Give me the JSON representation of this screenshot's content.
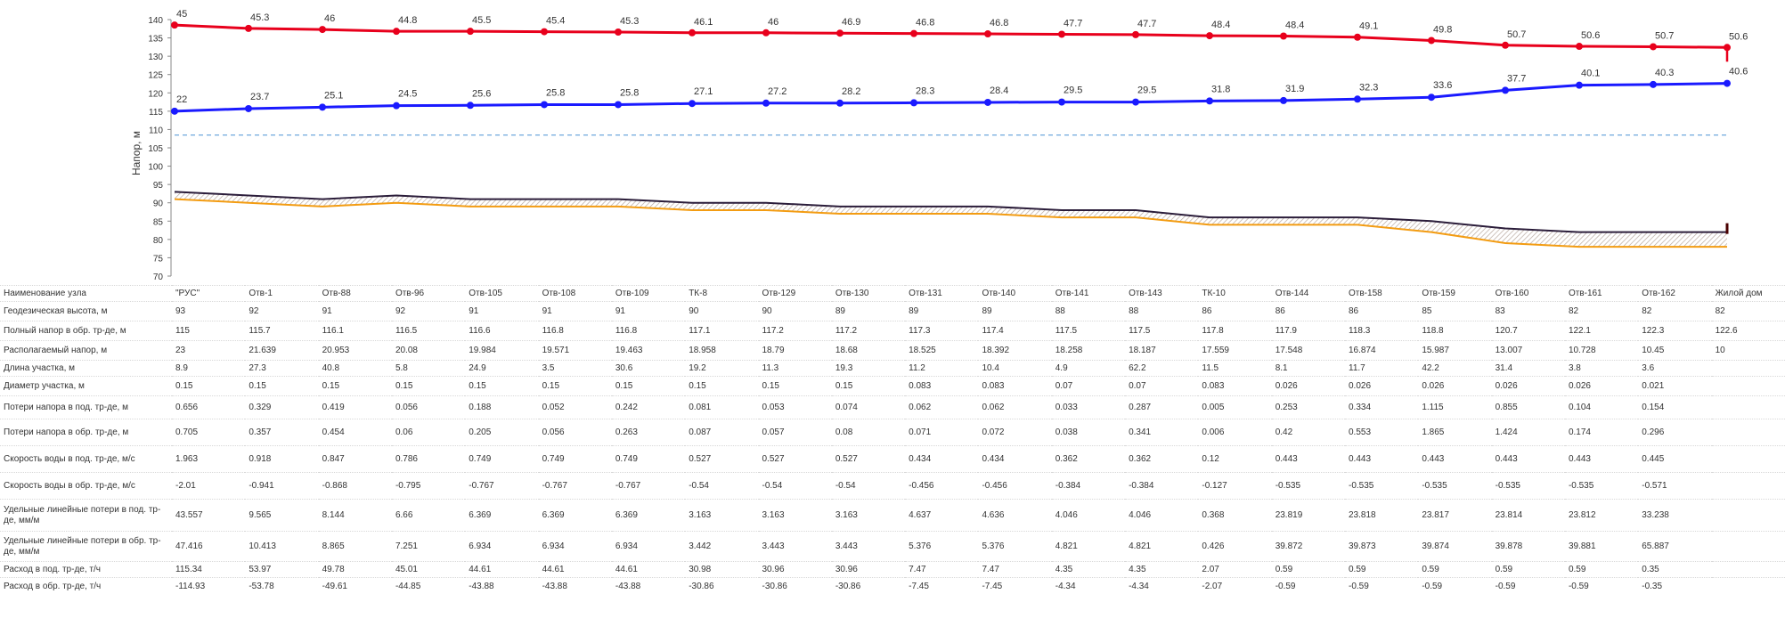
{
  "chart_data": {
    "type": "line",
    "ylabel": "Напор, м",
    "ylim": [
      70,
      140
    ],
    "yticks": [
      70,
      75,
      80,
      85,
      90,
      95,
      100,
      105,
      110,
      115,
      120,
      125,
      130,
      135,
      140
    ],
    "grid": false,
    "categories": [
      "\"РУС\"",
      "Отв-1",
      "Отв-88",
      "Отв-96",
      "Отв-105",
      "Отв-108",
      "Отв-109",
      "ТК-8",
      "Отв-129",
      "Отв-130",
      "Отв-131",
      "Отв-140",
      "Отв-141",
      "Отв-143",
      "ТК-10",
      "Отв-144",
      "Отв-158",
      "Отв-159",
      "Отв-160",
      "Отв-161",
      "Отв-162",
      "Жилой дом"
    ],
    "series": [
      {
        "color": "#e8001c",
        "values": [
          138.5,
          137.6,
          137.3,
          136.8,
          136.8,
          136.7,
          136.6,
          136.4,
          136.4,
          136.3,
          136.2,
          136.1,
          136.0,
          135.9,
          135.6,
          135.5,
          135.2,
          134.3,
          133.0,
          132.7,
          132.6,
          132.4
        ],
        "labels": [
          "45",
          "45.3",
          "46",
          "44.8",
          "45.5",
          "45.4",
          "45.3",
          "46.1",
          "46",
          "46.9",
          "46.8",
          "46.8",
          "47.7",
          "47.7",
          "48.4",
          "48.4",
          "49.1",
          "49.8",
          "50.7",
          "50.6",
          "50.7",
          "50.6"
        ]
      },
      {
        "color": "#1a1aff",
        "values": [
          115,
          115.7,
          116.1,
          116.5,
          116.6,
          116.8,
          116.8,
          117.1,
          117.2,
          117.2,
          117.3,
          117.4,
          117.5,
          117.5,
          117.8,
          117.9,
          118.3,
          118.8,
          120.7,
          122.1,
          122.3,
          122.6
        ],
        "labels": [
          "22",
          "23.7",
          "25.1",
          "24.5",
          "25.6",
          "25.8",
          "25.8",
          "27.1",
          "27.2",
          "28.2",
          "28.3",
          "28.4",
          "29.5",
          "29.5",
          "31.8",
          "31.9",
          "32.3",
          "33.6",
          "37.7",
          "40.1",
          "40.3",
          "40.6"
        ]
      },
      {
        "color": "#6fa8dc",
        "dashed": true,
        "values": [
          108.5,
          108.5,
          108.5,
          108.5,
          108.5,
          108.5,
          108.5,
          108.5,
          108.5,
          108.5,
          108.5,
          108.5,
          108.5,
          108.5,
          108.5,
          108.5,
          108.5,
          108.5,
          108.5,
          108.5,
          108.5,
          108.5
        ]
      },
      {
        "color": "#2b1d3a",
        "values": [
          93,
          92,
          91,
          92,
          91,
          91,
          91,
          90,
          90,
          89,
          89,
          89,
          88,
          88,
          86,
          86,
          86,
          85,
          83,
          82,
          82,
          82
        ]
      },
      {
        "color": "#f39c12",
        "values": [
          91,
          90,
          89,
          90,
          89,
          89,
          89,
          88,
          88,
          87,
          87,
          87,
          86,
          86,
          84,
          84,
          84,
          82,
          79,
          78,
          78,
          78
        ]
      }
    ]
  },
  "table": {
    "rows": [
      {
        "label": "Наименование узла",
        "values": [
          "\"РУС\"",
          "Отв-1",
          "Отв-88",
          "Отв-96",
          "Отв-105",
          "Отв-108",
          "Отв-109",
          "ТК-8",
          "Отв-129",
          "Отв-130",
          "Отв-131",
          "Отв-140",
          "Отв-141",
          "Отв-143",
          "ТК-10",
          "Отв-144",
          "Отв-158",
          "Отв-159",
          "Отв-160",
          "Отв-161",
          "Отв-162",
          "Жилой дом"
        ]
      },
      {
        "label": "Геодезическая высота, м",
        "values": [
          "93",
          "92",
          "91",
          "92",
          "91",
          "91",
          "91",
          "90",
          "90",
          "89",
          "89",
          "89",
          "88",
          "88",
          "86",
          "86",
          "86",
          "85",
          "83",
          "82",
          "82",
          "82"
        ]
      },
      {
        "label": "Полный напор в обр. тр-де, м",
        "values": [
          "115",
          "115.7",
          "116.1",
          "116.5",
          "116.6",
          "116.8",
          "116.8",
          "117.1",
          "117.2",
          "117.2",
          "117.3",
          "117.4",
          "117.5",
          "117.5",
          "117.8",
          "117.9",
          "118.3",
          "118.8",
          "120.7",
          "122.1",
          "122.3",
          "122.6"
        ]
      },
      {
        "label": "Располагаемый напор, м",
        "values": [
          "23",
          "21.639",
          "20.953",
          "20.08",
          "19.984",
          "19.571",
          "19.463",
          "18.958",
          "18.79",
          "18.68",
          "18.525",
          "18.392",
          "18.258",
          "18.187",
          "17.559",
          "17.548",
          "16.874",
          "15.987",
          "13.007",
          "10.728",
          "10.45",
          "10"
        ]
      },
      {
        "label": "Длина участка, м",
        "values": [
          "8.9",
          "27.3",
          "40.8",
          "5.8",
          "24.9",
          "3.5",
          "30.6",
          "19.2",
          "11.3",
          "19.3",
          "11.2",
          "10.4",
          "4.9",
          "62.2",
          "11.5",
          "8.1",
          "11.7",
          "42.2",
          "31.4",
          "3.8",
          "3.6",
          ""
        ]
      },
      {
        "label": "Диаметр участка, м",
        "values": [
          "0.15",
          "0.15",
          "0.15",
          "0.15",
          "0.15",
          "0.15",
          "0.15",
          "0.15",
          "0.15",
          "0.15",
          "0.083",
          "0.083",
          "0.07",
          "0.07",
          "0.083",
          "0.026",
          "0.026",
          "0.026",
          "0.026",
          "0.026",
          "0.021",
          ""
        ]
      },
      {
        "label": "Потери напора в под. тр-де, м",
        "values": [
          "0.656",
          "0.329",
          "0.419",
          "0.056",
          "0.188",
          "0.052",
          "0.242",
          "0.081",
          "0.053",
          "0.074",
          "0.062",
          "0.062",
          "0.033",
          "0.287",
          "0.005",
          "0.253",
          "0.334",
          "1.115",
          "0.855",
          "0.104",
          "0.154",
          ""
        ]
      },
      {
        "label": "Потери напора в обр. тр-де, м",
        "values": [
          "0.705",
          "0.357",
          "0.454",
          "0.06",
          "0.205",
          "0.056",
          "0.263",
          "0.087",
          "0.057",
          "0.08",
          "0.071",
          "0.072",
          "0.038",
          "0.341",
          "0.006",
          "0.42",
          "0.553",
          "1.865",
          "1.424",
          "0.174",
          "0.296",
          ""
        ]
      },
      {
        "label": "Скорость воды в под. тр-де, м/с",
        "values": [
          "1.963",
          "0.918",
          "0.847",
          "0.786",
          "0.749",
          "0.749",
          "0.749",
          "0.527",
          "0.527",
          "0.527",
          "0.434",
          "0.434",
          "0.362",
          "0.362",
          "0.12",
          "0.443",
          "0.443",
          "0.443",
          "0.443",
          "0.443",
          "0.445",
          ""
        ]
      },
      {
        "label": "Скорость воды в обр. тр-де, м/с",
        "values": [
          "-2.01",
          "-0.941",
          "-0.868",
          "-0.795",
          "-0.767",
          "-0.767",
          "-0.767",
          "-0.54",
          "-0.54",
          "-0.54",
          "-0.456",
          "-0.456",
          "-0.384",
          "-0.384",
          "-0.127",
          "-0.535",
          "-0.535",
          "-0.535",
          "-0.535",
          "-0.535",
          "-0.571",
          ""
        ]
      },
      {
        "label": "Удельные линейные потери в под. тр-де, мм/м",
        "values": [
          "43.557",
          "9.565",
          "8.144",
          "6.66",
          "6.369",
          "6.369",
          "6.369",
          "3.163",
          "3.163",
          "3.163",
          "4.637",
          "4.636",
          "4.046",
          "4.046",
          "0.368",
          "23.819",
          "23.818",
          "23.817",
          "23.814",
          "23.812",
          "33.238",
          ""
        ]
      },
      {
        "label": "Удельные линейные потери в обр. тр-де, мм/м",
        "values": [
          "47.416",
          "10.413",
          "8.865",
          "7.251",
          "6.934",
          "6.934",
          "6.934",
          "3.442",
          "3.443",
          "3.443",
          "5.376",
          "5.376",
          "4.821",
          "4.821",
          "0.426",
          "39.872",
          "39.873",
          "39.874",
          "39.878",
          "39.881",
          "65.887",
          ""
        ]
      },
      {
        "label": "Расход в под. тр-де, т/ч",
        "values": [
          "115.34",
          "53.97",
          "49.78",
          "45.01",
          "44.61",
          "44.61",
          "44.61",
          "30.98",
          "30.96",
          "30.96",
          "7.47",
          "7.47",
          "4.35",
          "4.35",
          "2.07",
          "0.59",
          "0.59",
          "0.59",
          "0.59",
          "0.59",
          "0.35",
          ""
        ]
      },
      {
        "label": "Расход в обр. тр-де, т/ч",
        "values": [
          "-114.93",
          "-53.78",
          "-49.61",
          "-44.85",
          "-43.88",
          "-43.88",
          "-43.88",
          "-30.86",
          "-30.86",
          "-30.86",
          "-7.45",
          "-7.45",
          "-4.34",
          "-4.34",
          "-2.07",
          "-0.59",
          "-0.59",
          "-0.59",
          "-0.59",
          "-0.59",
          "-0.35",
          ""
        ]
      }
    ]
  }
}
